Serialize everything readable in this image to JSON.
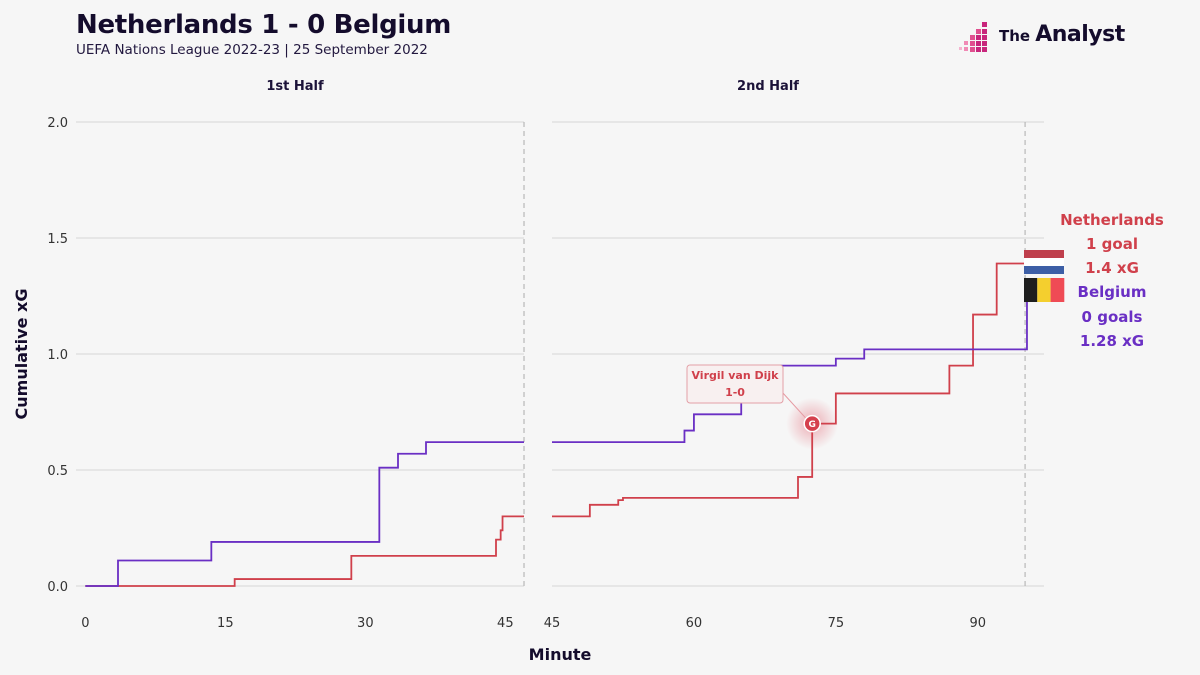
{
  "header": {
    "title": "Netherlands 1 - 0 Belgium",
    "subtitle": "UEFA Nations League 2022-23 | 25 September 2022"
  },
  "brand": {
    "the": "The",
    "name": "Analyst"
  },
  "colors": {
    "netherlands": "#d0404b",
    "belgium": "#6a2fc4",
    "grid": "#dcdcdc",
    "axis_text": "#333333"
  },
  "chart_data": {
    "type": "line",
    "step": true,
    "ylabel": "Cumulative xG",
    "xlabel": "Minute",
    "ylim": [
      0,
      2.0
    ],
    "yticks": [
      "0.0",
      "0.5",
      "1.0",
      "1.5",
      "2.0"
    ],
    "grid": true,
    "panels": [
      {
        "title": "1st Half",
        "xlim": [
          -1,
          47
        ],
        "xticks": [
          "0",
          "15",
          "30",
          "45"
        ],
        "end_minute": 47,
        "series": [
          {
            "name": "Netherlands",
            "points": [
              [
                0,
                0
              ],
              [
                16,
                0.03
              ],
              [
                28.5,
                0.13
              ],
              [
                44,
                0.2
              ],
              [
                44.5,
                0.24
              ],
              [
                44.7,
                0.3
              ],
              [
                47,
                0.3
              ]
            ]
          },
          {
            "name": "Belgium",
            "points": [
              [
                0,
                0
              ],
              [
                3.5,
                0.11
              ],
              [
                13.5,
                0.19
              ],
              [
                31.5,
                0.51
              ],
              [
                33.5,
                0.57
              ],
              [
                36.5,
                0.62
              ],
              [
                47,
                0.62
              ]
            ]
          }
        ]
      },
      {
        "title": "2nd Half",
        "xlim": [
          45,
          97
        ],
        "xticks": [
          "45",
          "60",
          "75",
          "90"
        ],
        "end_minute": 95,
        "series": [
          {
            "name": "Netherlands",
            "points": [
              [
                45,
                0.3
              ],
              [
                49,
                0.35
              ],
              [
                52,
                0.37
              ],
              [
                52.5,
                0.38
              ],
              [
                71,
                0.47
              ],
              [
                72.5,
                0.7
              ],
              [
                75,
                0.83
              ],
              [
                87,
                0.95
              ],
              [
                89.5,
                1.17
              ],
              [
                92,
                1.39
              ],
              [
                95,
                1.39
              ]
            ]
          },
          {
            "name": "Belgium",
            "points": [
              [
                45,
                0.62
              ],
              [
                59,
                0.67
              ],
              [
                60,
                0.74
              ],
              [
                65,
                0.8
              ],
              [
                66,
                0.95
              ],
              [
                75,
                0.98
              ],
              [
                78,
                1.02
              ],
              [
                95,
                1.02
              ],
              [
                95.2,
                1.28
              ]
            ]
          }
        ],
        "annotation": {
          "player": "Virgil van Dijk",
          "score": "1-0",
          "marker": "G",
          "x": 72.5,
          "y": 0.7
        }
      }
    ]
  },
  "end_labels": {
    "netherlands": {
      "team": "Netherlands",
      "goals": "1 goal",
      "xg": "1.4 xG"
    },
    "belgium": {
      "team": "Belgium",
      "goals": "0 goals",
      "xg": "1.28 xG"
    }
  }
}
